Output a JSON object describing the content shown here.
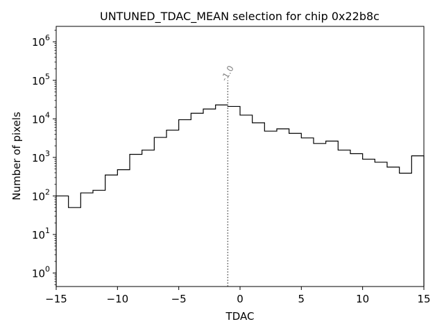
{
  "chart_data": {
    "type": "histogram",
    "title": "UNTUNED_TDAC_MEAN selection for chip 0x22b8c",
    "xlabel": "TDAC",
    "ylabel": "Number of pixels",
    "xlim": [
      -15,
      15
    ],
    "ylim_log10": [
      -0.35,
      6.4
    ],
    "yscale": "log",
    "x_ticks": [
      -15,
      -10,
      -5,
      0,
      5,
      10,
      15
    ],
    "x_tick_labels": [
      "−15",
      "−10",
      "−5",
      "0",
      "5",
      "10",
      "15"
    ],
    "y_ticks": [
      {
        "base": "10",
        "exp": "0"
      },
      {
        "base": "10",
        "exp": "1"
      },
      {
        "base": "10",
        "exp": "2"
      },
      {
        "base": "10",
        "exp": "3"
      },
      {
        "base": "10",
        "exp": "4"
      },
      {
        "base": "10",
        "exp": "5"
      },
      {
        "base": "10",
        "exp": "6"
      }
    ],
    "bin_edges": [
      -15,
      -14,
      -13,
      -12,
      -11,
      -10,
      -9,
      -8,
      -7,
      -6,
      -5,
      -4,
      -3,
      -2,
      -1,
      0,
      1,
      2,
      3,
      4,
      5,
      6,
      7,
      8,
      9,
      10,
      11,
      12,
      13,
      14,
      15
    ],
    "values": [
      100,
      50,
      120,
      140,
      350,
      480,
      1200,
      1550,
      3300,
      5100,
      9500,
      14000,
      18000,
      23000,
      21000,
      12500,
      7900,
      4800,
      5500,
      4200,
      3200,
      2300,
      2650,
      1550,
      1250,
      900,
      750,
      560,
      390,
      1100
    ],
    "line_color": "#000000",
    "marker": {
      "x": -1.0,
      "label": "-1.0",
      "line_color": "#808080",
      "top_value": 100000
    }
  }
}
